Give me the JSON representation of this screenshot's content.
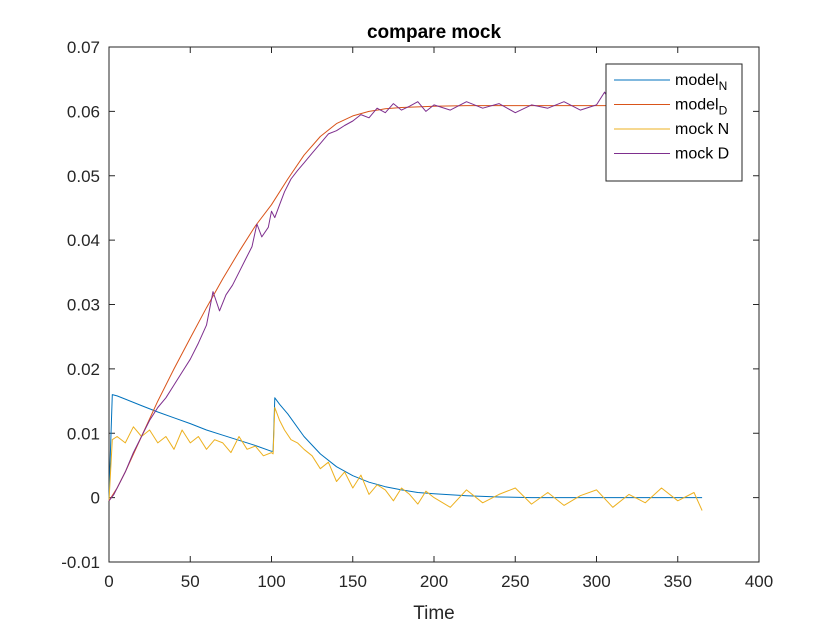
{
  "chart_data": {
    "type": "line",
    "title": "compare mock",
    "xlabel": "Time",
    "ylabel": "",
    "xlim": [
      0,
      400
    ],
    "ylim": [
      -0.01,
      0.07
    ],
    "xticks": [
      0,
      50,
      100,
      150,
      200,
      250,
      300,
      350,
      400
    ],
    "xtick_labels": [
      "0",
      "50",
      "100",
      "150",
      "200",
      "250",
      "300",
      "350",
      "400"
    ],
    "yticks": [
      -0.01,
      0,
      0.01,
      0.02,
      0.03,
      0.04,
      0.05,
      0.06,
      0.07
    ],
    "ytick_labels": [
      "-0.01",
      "0",
      "0.01",
      "0.02",
      "0.03",
      "0.04",
      "0.05",
      "0.06",
      "0.07"
    ],
    "grid": false,
    "legend_position": "top-right",
    "legend": [
      {
        "base": "model",
        "sub": "N",
        "color": "#0072BD"
      },
      {
        "base": "model",
        "sub": "D",
        "color": "#D95319"
      },
      {
        "base": "mock N",
        "sub": "",
        "color": "#EDB120"
      },
      {
        "base": "mock D",
        "sub": "",
        "color": "#7E2F8E"
      }
    ],
    "series": [
      {
        "name": "model_N",
        "color": "#0072BD",
        "x": [
          0,
          1,
          2,
          5,
          10,
          20,
          30,
          40,
          50,
          60,
          70,
          80,
          90,
          100,
          101,
          102,
          105,
          110,
          120,
          130,
          140,
          150,
          160,
          170,
          180,
          190,
          200,
          220,
          240,
          260,
          280,
          300,
          330,
          365
        ],
        "y": [
          -0.0005,
          0.008,
          0.016,
          0.0158,
          0.0153,
          0.0143,
          0.0133,
          0.0124,
          0.0115,
          0.0105,
          0.0097,
          0.0089,
          0.0081,
          0.0072,
          0.0072,
          0.0155,
          0.0145,
          0.013,
          0.0095,
          0.0068,
          0.0048,
          0.0034,
          0.0024,
          0.0017,
          0.0012,
          0.0008,
          0.0006,
          0.0003,
          0.0001,
          0.0,
          0.0,
          0.0,
          0.0,
          0.0
        ]
      },
      {
        "name": "model_D",
        "color": "#D95319",
        "x": [
          0,
          5,
          10,
          20,
          30,
          40,
          50,
          60,
          70,
          80,
          90,
          100,
          110,
          120,
          130,
          140,
          150,
          160,
          170,
          180,
          190,
          200,
          220,
          240,
          260,
          280,
          300,
          330,
          365
        ],
        "y": [
          -0.0005,
          0.0015,
          0.004,
          0.0095,
          0.015,
          0.02,
          0.0248,
          0.0295,
          0.034,
          0.0382,
          0.0422,
          0.0455,
          0.0495,
          0.0532,
          0.0561,
          0.0581,
          0.0593,
          0.06,
          0.0604,
          0.0606,
          0.0607,
          0.0608,
          0.0609,
          0.0609,
          0.0609,
          0.0609,
          0.0609,
          0.0609,
          0.0609
        ]
      },
      {
        "name": "mock N",
        "color": "#EDB120",
        "x": [
          0,
          2,
          5,
          10,
          15,
          20,
          25,
          30,
          35,
          40,
          45,
          50,
          55,
          60,
          65,
          70,
          75,
          80,
          85,
          90,
          95,
          100,
          101,
          102,
          105,
          108,
          112,
          116,
          120,
          125,
          130,
          135,
          140,
          145,
          150,
          155,
          160,
          165,
          170,
          175,
          180,
          185,
          190,
          195,
          200,
          210,
          220,
          230,
          240,
          250,
          260,
          270,
          280,
          290,
          300,
          310,
          320,
          330,
          340,
          350,
          360,
          365
        ],
        "y": [
          -0.0005,
          0.009,
          0.0095,
          0.0085,
          0.011,
          0.0095,
          0.0105,
          0.0085,
          0.0095,
          0.0075,
          0.0105,
          0.0085,
          0.0095,
          0.0075,
          0.009,
          0.0085,
          0.007,
          0.0095,
          0.0075,
          0.008,
          0.0065,
          0.007,
          0.0068,
          0.014,
          0.012,
          0.0105,
          0.009,
          0.0085,
          0.0075,
          0.0065,
          0.0045,
          0.0055,
          0.0025,
          0.004,
          0.0015,
          0.0035,
          0.0005,
          0.002,
          0.0012,
          -0.0005,
          0.0015,
          0.0005,
          -0.001,
          0.001,
          0.0,
          -0.0015,
          0.0012,
          -0.0008,
          0.0005,
          0.0015,
          -0.001,
          0.0008,
          -0.0012,
          0.0003,
          0.0012,
          -0.0015,
          0.0005,
          -0.0008,
          0.0015,
          -0.0005,
          0.0008,
          -0.002
        ]
      },
      {
        "name": "mock D",
        "color": "#7E2F8E",
        "x": [
          0,
          3,
          6,
          10,
          15,
          20,
          25,
          30,
          35,
          40,
          45,
          50,
          55,
          60,
          64,
          68,
          72,
          76,
          80,
          84,
          88,
          91,
          94,
          98,
          100,
          102,
          105,
          108,
          112,
          116,
          120,
          125,
          130,
          135,
          140,
          145,
          150,
          155,
          160,
          165,
          170,
          175,
          180,
          185,
          190,
          195,
          200,
          210,
          220,
          230,
          240,
          250,
          260,
          270,
          280,
          290,
          300,
          305,
          310,
          320,
          330,
          340,
          350,
          360
        ],
        "y": [
          -0.0005,
          0.0005,
          0.002,
          0.004,
          0.007,
          0.0095,
          0.012,
          0.014,
          0.0155,
          0.0175,
          0.0195,
          0.0215,
          0.024,
          0.0268,
          0.032,
          0.029,
          0.0315,
          0.033,
          0.035,
          0.037,
          0.039,
          0.0425,
          0.0405,
          0.042,
          0.0445,
          0.0435,
          0.0455,
          0.0475,
          0.0495,
          0.0508,
          0.052,
          0.0535,
          0.055,
          0.0565,
          0.057,
          0.0578,
          0.0585,
          0.0595,
          0.059,
          0.0605,
          0.0598,
          0.0612,
          0.0602,
          0.0608,
          0.0615,
          0.06,
          0.061,
          0.0602,
          0.0615,
          0.0605,
          0.0612,
          0.0598,
          0.061,
          0.0605,
          0.0615,
          0.0602,
          0.061,
          0.063,
          0.0608,
          0.0612,
          0.06,
          0.0615,
          0.0605,
          0.0612
        ]
      }
    ]
  }
}
